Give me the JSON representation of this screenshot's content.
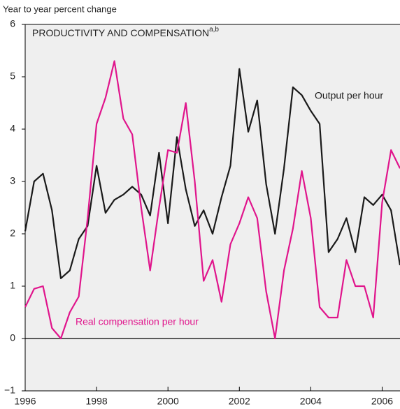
{
  "chart_data": {
    "type": "line",
    "title": "PRODUCTIVITY AND COMPENSATION",
    "title_superscript": "a,b",
    "y_label": "Year to year percent change",
    "x": [
      1996,
      1996.25,
      1996.5,
      1996.75,
      1997,
      1997.25,
      1997.5,
      1997.75,
      1998,
      1998.25,
      1998.5,
      1998.75,
      1999,
      1999.25,
      1999.5,
      1999.75,
      2000,
      2000.25,
      2000.5,
      2000.75,
      2001,
      2001.25,
      2001.5,
      2001.75,
      2002,
      2002.25,
      2002.5,
      2002.75,
      2003,
      2003.25,
      2003.5,
      2003.75,
      2004,
      2004.25,
      2004.5,
      2004.75,
      2005,
      2005.25,
      2005.5,
      2005.75,
      2006,
      2006.25,
      2006.5
    ],
    "series": [
      {
        "name": "Output per hour",
        "color": "#1a1a1a",
        "values": [
          2.05,
          3.0,
          3.15,
          2.45,
          1.15,
          1.3,
          1.9,
          2.15,
          3.3,
          2.4,
          2.65,
          2.75,
          2.9,
          2.75,
          2.35,
          3.55,
          2.2,
          3.85,
          2.85,
          2.15,
          2.45,
          2.0,
          2.7,
          3.3,
          5.15,
          3.95,
          4.55,
          2.95,
          2.0,
          3.25,
          4.8,
          4.65,
          4.35,
          4.1,
          1.65,
          1.9,
          2.3,
          1.65,
          2.7,
          2.55,
          2.75,
          2.45,
          1.4
        ]
      },
      {
        "name": "Real compensation per hour",
        "color": "#e0158c",
        "values": [
          0.6,
          0.95,
          1.0,
          0.2,
          0.0,
          0.5,
          0.8,
          2.3,
          4.1,
          4.6,
          5.3,
          4.2,
          3.9,
          2.5,
          1.3,
          2.5,
          3.6,
          3.55,
          4.5,
          3.0,
          1.1,
          1.5,
          0.7,
          1.8,
          2.2,
          2.7,
          2.3,
          0.9,
          0.0,
          1.3,
          2.1,
          3.2,
          2.3,
          0.6,
          0.4,
          0.4,
          1.5,
          1.0,
          1.0,
          0.4,
          2.6,
          3.6,
          3.25
        ]
      }
    ],
    "xlim": [
      1996,
      2006.5
    ],
    "xticks": [
      1996,
      1998,
      2000,
      2002,
      2004,
      2006
    ],
    "ylim": [
      -1,
      6
    ],
    "yticks": [
      {
        "value": -1,
        "label": "−1"
      },
      0,
      1,
      2,
      3,
      4,
      5,
      6
    ],
    "grid": false
  }
}
